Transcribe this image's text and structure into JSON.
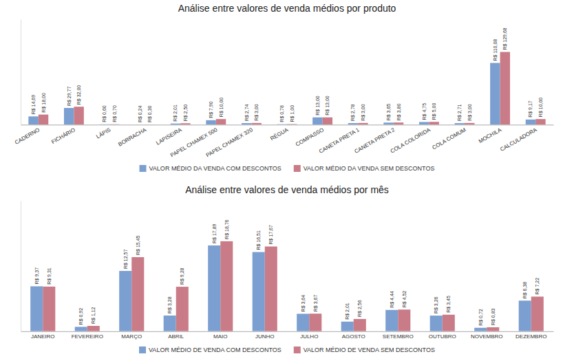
{
  "chart_data": [
    {
      "type": "bar",
      "title": "Análise entre valores de venda médios por produto",
      "categories": [
        "CADERNO",
        "FICHÁRIO",
        "LÁPIS",
        "BORRACHA",
        "LAPISEIRA",
        "PAPEL CHAMEX 500",
        "PAPEL CHAMEX 320",
        "RÉGUA",
        "COMPASSO",
        "CANETA PRETA 1",
        "CANETA PRETA 2",
        "COLA COLORIDA",
        "COLA COMUM",
        "MOCHILA",
        "CALCULADORA"
      ],
      "series": [
        {
          "name": "VALOR MÉDIO DA VENDA COM DESCONTOS",
          "color": "#7B9FD0",
          "values": [
            14.69,
            29.77,
            0.6,
            0.24,
            2.01,
            7.9,
            2.74,
            0.78,
            13.0,
            2.78,
            3.65,
            4.75,
            2.71,
            110.08,
            9.17
          ],
          "value_labels": [
            "R$ 14,69",
            "R$ 29,77",
            "R$ 0,60",
            "R$ 0,24",
            "R$ 2,01",
            "R$ 7,90",
            "R$ 2,74",
            "R$ 0,78",
            "R$ 13,00",
            "R$ 2,78",
            "R$ 3,65",
            "R$ 4,75",
            "R$ 2,71",
            "R$ 110,08",
            "R$ 9,17"
          ]
        },
        {
          "name": "VALOR MÉDIO DA VENDA SEM DESCONTOS",
          "color": "#C97C87",
          "values": [
            18.0,
            32.0,
            0.7,
            0.3,
            2.5,
            10.0,
            3.0,
            1.0,
            13.0,
            3.0,
            3.8,
            5.0,
            3.0,
            129.68,
            10.0
          ],
          "value_labels": [
            "R$ 18,00",
            "R$ 32,00",
            "R$ 0,70",
            "R$ 0,30",
            "R$ 2,50",
            "R$ 10,00",
            "R$ 3,00",
            "R$ 1,00",
            "R$ 13,00",
            "R$ 3,00",
            "R$ 3,80",
            "R$ 5,00",
            "R$ 3,00",
            "R$ 129,68",
            "R$ 10,00"
          ]
        }
      ],
      "ylim": [
        0,
        188.036
      ],
      "data_labels": true,
      "tick_labels": "x",
      "grid": false,
      "legend": "bottom"
    },
    {
      "type": "bar",
      "title": "Análise entre valores de venda médios por mês",
      "categories": [
        "JANEIRO",
        "FEVEREIRO",
        "MARÇO",
        "ABRIL",
        "MAIO",
        "JUNHO",
        "JULHO",
        "AGOSTO",
        "SETEMBRO",
        "OUTUBRO",
        "NOVEMBRO",
        "DEZEMBRO"
      ],
      "series": [
        {
          "name": "VALOR MÉDIO DE VENDA COM DESCONTOS",
          "color": "#7B9FD0",
          "values": [
            9.37,
            0.92,
            12.57,
            3.28,
            17.89,
            16.51,
            3.64,
            2.01,
            4.44,
            3.26,
            0.72,
            6.38
          ],
          "value_labels": [
            "R$ 9,37",
            "R$ 0,92",
            "R$ 12,57",
            "R$ 3,28",
            "R$ 17,89",
            "R$ 16,51",
            "R$ 3,64",
            "R$ 2,01",
            "R$ 4,44",
            "R$ 3,26",
            "R$ 0,72",
            "R$ 6,38"
          ]
        },
        {
          "name": "VALOR MÉDIO DE VENDA SEM DESCONTOS",
          "color": "#C97C87",
          "values": [
            9.31,
            1.12,
            15.45,
            9.28,
            18.76,
            17.67,
            3.67,
            2.56,
            4.52,
            3.45,
            0.83,
            7.22
          ],
          "value_labels": [
            "R$ 9,31",
            "R$ 1,12",
            "R$ 15,45",
            "R$ 9,28",
            "R$ 18,76",
            "R$ 17,67",
            "R$ 3,67",
            "R$ 2,56",
            "R$ 4,52",
            "R$ 3,45",
            "R$ 0,83",
            "R$ 7,22"
          ]
        }
      ],
      "ylim": [
        0,
        27.202
      ],
      "data_labels": true,
      "tick_labels": "x",
      "grid": false,
      "legend": "bottom"
    }
  ]
}
